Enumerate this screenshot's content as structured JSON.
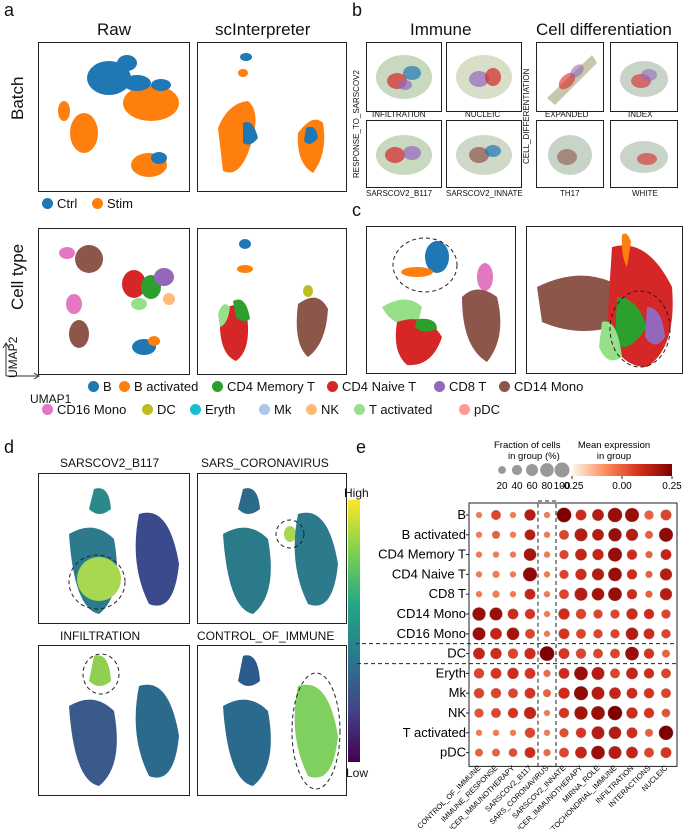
{
  "panels": {
    "a": "a",
    "b": "b",
    "c": "c",
    "d": "d",
    "e": "e"
  },
  "panel_a": {
    "col_raw": "Raw",
    "col_sci": "scInterpreter",
    "row_batch": "Batch",
    "row_celltype": "Cell type",
    "umap1": "UMAP1",
    "umap2": "UMAP2",
    "batch_legend": [
      {
        "label": "Ctrl",
        "color": "#1f77b4"
      },
      {
        "label": "Stim",
        "color": "#ff7f0e"
      }
    ]
  },
  "panel_b": {
    "title_immune": "Immune",
    "title_diff": "Cell differentiation",
    "ylabel_left": "RESPONSE_TO_SARSCOV2",
    "ylabel_right": "CELL_DIFFERENTIATION",
    "labels": [
      "INFILTRATION",
      "NUCLEIC",
      "EXPANDED",
      "INDEX",
      "SARSCOV2_B117",
      "SARSCOV2_INNATE",
      "TH17",
      "WHITE"
    ]
  },
  "celltype_legend": [
    {
      "label": "B",
      "color": "#1f77b4"
    },
    {
      "label": "B activated",
      "color": "#ff7f0e"
    },
    {
      "label": "CD4 Memory T",
      "color": "#2ca02c"
    },
    {
      "label": "CD4 Naive T",
      "color": "#d62728"
    },
    {
      "label": "CD8 T",
      "color": "#9467bd"
    },
    {
      "label": "CD14 Mono",
      "color": "#8c564b"
    },
    {
      "label": "CD16 Mono",
      "color": "#e377c2"
    },
    {
      "label": "DC",
      "color": "#bcbd22"
    },
    {
      "label": "Eryth",
      "color": "#17becf"
    },
    {
      "label": "Mk",
      "color": "#aec7e8"
    },
    {
      "label": "NK",
      "color": "#ffbb78"
    },
    {
      "label": "T activated",
      "color": "#98df8a"
    },
    {
      "label": "pDC",
      "color": "#ff9896"
    }
  ],
  "panel_d": {
    "titles": [
      "SARSCOV2_B117",
      "SARS_CORONAVIRUS",
      "INFILTRATION",
      "CONTROL_OF_IMMUNE"
    ],
    "colorbar_high": "High",
    "colorbar_low": "Low"
  },
  "chart_data": {
    "type": "dotplot",
    "size_legend_title": "Fraction of cells\nin group (%)",
    "size_legend_title_1": "Fraction of cells",
    "size_legend_title_2": "in group (%)",
    "size_legend_ticks": [
      "20",
      "40",
      "60",
      "80",
      "100"
    ],
    "color_legend_title_1": "Mean expression",
    "color_legend_title_2": "in group",
    "color_range": [
      -0.25,
      0.25
    ],
    "color_ticks": [
      "-0.25",
      "0.00",
      "0.25"
    ],
    "rows": [
      "B",
      "B activated",
      "CD4 Memory T",
      "CD4 Naive T",
      "CD8 T",
      "CD14 Mono",
      "CD16 Mono",
      "DC",
      "Eryth",
      "Mk",
      "NK",
      "T activated",
      "pDC"
    ],
    "columns": [
      "CONTROL_OF_IMMUNE",
      "IMMUNE_RESPONSE",
      "CANCER_IMMUNOTHERAPY",
      "SARSCOV2_B117",
      "SARS_CORONAVIRUS",
      "SARSCOV2_INNATE",
      "CANCER_IMMUNOTHERAPY",
      "MIRNA_ROLE",
      "MITOCHONDRIAL_IMMUNE",
      "INFILTRATION",
      "INTERACTIONS",
      "NUCLEIC"
    ],
    "fraction": [
      [
        10,
        35,
        10,
        50,
        10,
        95,
        45,
        55,
        90,
        85,
        30,
        45
      ],
      [
        10,
        20,
        10,
        45,
        10,
        35,
        70,
        55,
        75,
        60,
        20,
        85
      ],
      [
        10,
        10,
        10,
        65,
        10,
        30,
        55,
        50,
        85,
        40,
        15,
        45
      ],
      [
        10,
        15,
        10,
        85,
        10,
        30,
        50,
        60,
        80,
        40,
        15,
        60
      ],
      [
        10,
        15,
        10,
        45,
        10,
        35,
        70,
        65,
        80,
        40,
        15,
        60
      ],
      [
        75,
        70,
        45,
        40,
        10,
        50,
        40,
        30,
        30,
        50,
        40,
        30
      ],
      [
        70,
        55,
        65,
        35,
        10,
        45,
        35,
        30,
        30,
        65,
        45,
        30
      ],
      [
        55,
        50,
        40,
        50,
        95,
        45,
        40,
        35,
        35,
        80,
        40,
        20
      ],
      [
        40,
        45,
        50,
        45,
        15,
        45,
        80,
        70,
        35,
        55,
        40,
        35
      ],
      [
        40,
        40,
        35,
        45,
        20,
        50,
        85,
        70,
        55,
        45,
        40,
        35
      ],
      [
        30,
        35,
        40,
        60,
        10,
        40,
        75,
        80,
        90,
        50,
        40,
        25
      ],
      [
        10,
        10,
        10,
        40,
        10,
        30,
        40,
        70,
        65,
        45,
        20,
        90
      ],
      [
        20,
        20,
        25,
        45,
        15,
        35,
        55,
        80,
        70,
        55,
        35,
        45
      ]
    ],
    "expression": [
      [
        -0.05,
        0.05,
        -0.05,
        0.15,
        -0.05,
        0.25,
        0.1,
        0.15,
        0.2,
        0.2,
        0.0,
        0.05
      ],
      [
        -0.05,
        0.0,
        -0.05,
        0.15,
        -0.05,
        0.05,
        0.15,
        0.15,
        0.2,
        0.15,
        0.0,
        0.22
      ],
      [
        -0.05,
        -0.05,
        -0.05,
        0.18,
        -0.05,
        0.05,
        0.12,
        0.12,
        0.2,
        0.1,
        0.0,
        0.12
      ],
      [
        -0.05,
        -0.05,
        -0.05,
        0.22,
        -0.05,
        0.05,
        0.1,
        0.15,
        0.2,
        0.1,
        0.0,
        0.15
      ],
      [
        -0.05,
        -0.05,
        -0.05,
        0.12,
        -0.05,
        0.05,
        0.15,
        0.18,
        0.2,
        0.1,
        0.0,
        0.15
      ],
      [
        0.2,
        0.2,
        0.1,
        0.08,
        -0.05,
        0.1,
        0.05,
        0.05,
        0.05,
        0.1,
        0.1,
        0.05
      ],
      [
        0.2,
        0.12,
        0.18,
        0.05,
        -0.05,
        0.08,
        0.05,
        0.05,
        0.05,
        0.15,
        0.1,
        0.05
      ],
      [
        0.12,
        0.1,
        0.05,
        0.1,
        0.25,
        0.08,
        0.05,
        0.05,
        0.05,
        0.2,
        0.08,
        0.0
      ],
      [
        0.05,
        0.08,
        0.1,
        0.08,
        -0.02,
        0.1,
        0.2,
        0.15,
        0.05,
        0.12,
        0.1,
        0.05
      ],
      [
        0.05,
        0.05,
        0.05,
        0.08,
        0.0,
        0.1,
        0.22,
        0.15,
        0.12,
        0.1,
        0.08,
        0.05
      ],
      [
        0.02,
        0.05,
        0.08,
        0.12,
        -0.05,
        0.08,
        0.18,
        0.2,
        0.25,
        0.1,
        0.08,
        0.02
      ],
      [
        -0.05,
        -0.05,
        -0.05,
        0.05,
        -0.05,
        0.03,
        0.08,
        0.15,
        0.15,
        0.1,
        0.0,
        0.25
      ],
      [
        0.0,
        0.0,
        0.03,
        0.1,
        -0.02,
        0.05,
        0.12,
        0.2,
        0.15,
        0.12,
        0.05,
        0.08
      ]
    ]
  }
}
